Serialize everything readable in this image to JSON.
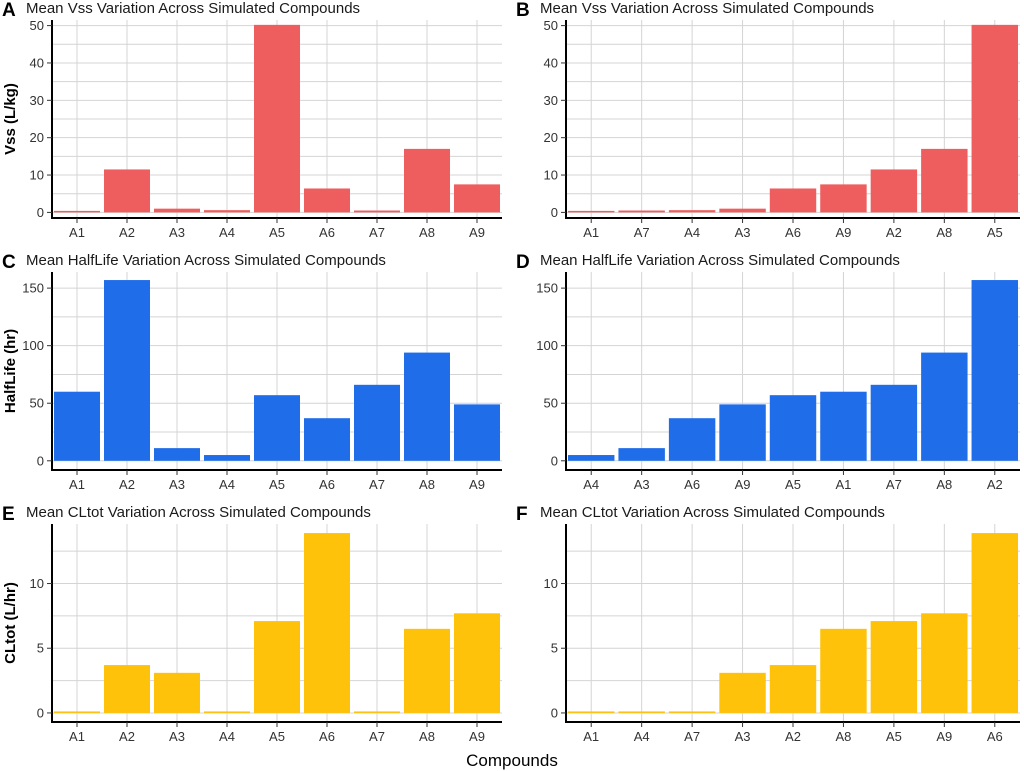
{
  "figure": {
    "xlabel": "Compounds"
  },
  "chart_data": [
    {
      "type": "bar",
      "panel_label": "A",
      "title": "Mean Vss Variation Across Simulated Compounds",
      "ylabel": "Vss (L/kg)",
      "ylim": [
        -1.5,
        51.5
      ],
      "yticks": [
        0,
        10,
        20,
        30,
        40,
        50
      ],
      "categories": [
        "A1",
        "A2",
        "A3",
        "A4",
        "A5",
        "A6",
        "A7",
        "A8",
        "A9"
      ],
      "values": [
        0.3,
        11.5,
        1.0,
        0.6,
        50.2,
        6.4,
        0.5,
        17.0,
        7.5
      ],
      "color": "#EE5E5E",
      "grid": true
    },
    {
      "type": "bar",
      "panel_label": "B",
      "title": "Mean Vss Variation Across Simulated Compounds",
      "ylabel": "",
      "ylim": [
        -1.5,
        51.5
      ],
      "yticks": [
        0,
        10,
        20,
        30,
        40,
        50
      ],
      "categories": [
        "A1",
        "A7",
        "A4",
        "A3",
        "A6",
        "A9",
        "A2",
        "A8",
        "A5"
      ],
      "values": [
        0.3,
        0.5,
        0.6,
        1.0,
        6.4,
        7.5,
        11.5,
        17.0,
        50.2
      ],
      "color": "#EE5E5E",
      "grid": true
    },
    {
      "type": "bar",
      "panel_label": "C",
      "title": "Mean HalfLife Variation Across Simulated Compounds",
      "ylabel": "HalfLife (hr)",
      "ylim": [
        -8,
        164
      ],
      "yticks": [
        0,
        50,
        100,
        150
      ],
      "categories": [
        "A1",
        "A2",
        "A3",
        "A4",
        "A5",
        "A6",
        "A7",
        "A8",
        "A9"
      ],
      "values": [
        60,
        157,
        11,
        5,
        57,
        37,
        66,
        94,
        49
      ],
      "color": "#1F6DE8",
      "grid": true
    },
    {
      "type": "bar",
      "panel_label": "D",
      "title": "Mean HalfLife Variation Across Simulated Compounds",
      "ylabel": "",
      "ylim": [
        -8,
        164
      ],
      "yticks": [
        0,
        50,
        100,
        150
      ],
      "categories": [
        "A4",
        "A3",
        "A6",
        "A9",
        "A5",
        "A1",
        "A7",
        "A8",
        "A2"
      ],
      "values": [
        5,
        11,
        37,
        49,
        57,
        60,
        66,
        94,
        157
      ],
      "color": "#1F6DE8",
      "grid": true
    },
    {
      "type": "bar",
      "panel_label": "E",
      "title": "Mean CLtot Variation Across Simulated Compounds",
      "ylabel": "CLtot (L/hr)",
      "ylim": [
        -0.7,
        14.6
      ],
      "yticks": [
        0,
        5,
        10
      ],
      "categories": [
        "A1",
        "A2",
        "A3",
        "A4",
        "A5",
        "A6",
        "A7",
        "A8",
        "A9"
      ],
      "values": [
        0.05,
        3.7,
        3.1,
        0.05,
        7.1,
        13.9,
        0.05,
        6.5,
        7.7
      ],
      "color": "#FFC20A",
      "grid": true
    },
    {
      "type": "bar",
      "panel_label": "F",
      "title": "Mean CLtot Variation Across Simulated Compounds",
      "ylabel": "",
      "ylim": [
        -0.7,
        14.6
      ],
      "yticks": [
        0,
        5,
        10
      ],
      "categories": [
        "A1",
        "A4",
        "A7",
        "A3",
        "A2",
        "A8",
        "A5",
        "A9",
        "A6"
      ],
      "values": [
        0.05,
        0.05,
        0.05,
        3.1,
        3.7,
        6.5,
        7.1,
        7.7,
        13.9
      ],
      "color": "#FFC20A",
      "grid": true
    }
  ]
}
